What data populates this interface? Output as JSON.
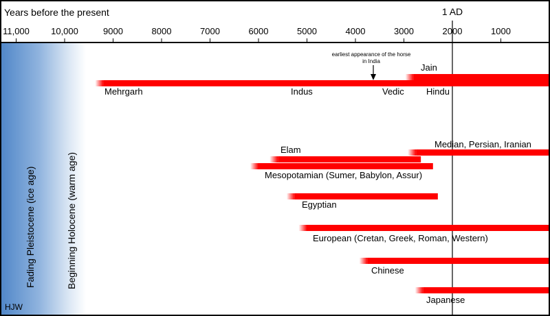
{
  "header": {
    "title": "Years before the present",
    "ad_label": "1 AD"
  },
  "axis": {
    "unit": "years before present",
    "ticks": [
      {
        "value": 11000,
        "label": "11,000"
      },
      {
        "value": 10000,
        "label": "10,000"
      },
      {
        "value": 9000,
        "label": "9000"
      },
      {
        "value": 8000,
        "label": "8000"
      },
      {
        "value": 7000,
        "label": "7000"
      },
      {
        "value": 6000,
        "label": "6000"
      },
      {
        "value": 5000,
        "label": "5000"
      },
      {
        "value": 4000,
        "label": "4000"
      },
      {
        "value": 3000,
        "label": "3000"
      },
      {
        "value": 2000,
        "label": "2000"
      },
      {
        "value": 1000,
        "label": "1000"
      }
    ],
    "reference_year": 2000
  },
  "ages": {
    "pleistocene": "Fading Pleistocene (ice age)",
    "holocene": "Beginning Holocene (warm age)",
    "author": "HJW"
  },
  "annotation": {
    "line1": "earliest appearance of the horse",
    "line2": "in India",
    "year": 3600
  },
  "colors": {
    "bar": "#ff0000",
    "ice_age": "#5a8fcf",
    "border": "#000000"
  },
  "civilizations": [
    {
      "name": "Mehrgarh",
      "start": 9200,
      "end": 5450,
      "row": "india_lower"
    },
    {
      "name": "Indus",
      "start": 5500,
      "end": 3600,
      "row": "india_lower"
    },
    {
      "name": "Vedic",
      "start": 4300,
      "end": 2600,
      "row": "india_lower"
    },
    {
      "name": "Hindu",
      "start": 2800,
      "end": 0,
      "row": "india_lower"
    },
    {
      "name": "Jain",
      "start": 2800,
      "end": 0,
      "row": "india_upper"
    },
    {
      "name": "Elam",
      "start": 5600,
      "end": 2650,
      "row": "elam"
    },
    {
      "name": "Mesopotamian (Sumer, Babylon, Assur)",
      "start": 6000,
      "end": 2400,
      "row": "meso"
    },
    {
      "name": "Median, Persian, Iranian",
      "start": 2750,
      "end": 0,
      "row": "median"
    },
    {
      "name": "Egyptian",
      "start": 5250,
      "end": 2300,
      "row": "egypt"
    },
    {
      "name": "European (Cretan, Greek, Roman, Western)",
      "start": 5000,
      "end": 0,
      "row": "europe"
    },
    {
      "name": "Chinese",
      "start": 3750,
      "end": 0,
      "row": "china"
    },
    {
      "name": "Japanese",
      "start": 2600,
      "end": 0,
      "row": "japan"
    }
  ]
}
